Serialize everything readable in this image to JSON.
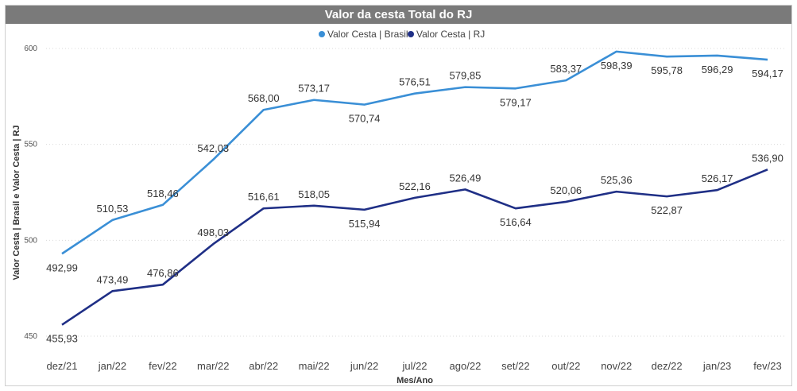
{
  "chart_data": {
    "type": "line",
    "title": "Valor da cesta Total do RJ",
    "xlabel": "Mes/Ano",
    "ylabel": "Valor Cesta | Brasil e Valor Cesta | RJ",
    "ylim": [
      450,
      600
    ],
    "yticks": [
      450,
      500,
      550,
      600
    ],
    "ytick_labels": [
      "450",
      "500",
      "550",
      "600"
    ],
    "categories": [
      "dez/21",
      "jan/22",
      "fev/22",
      "mar/22",
      "abr/22",
      "mai/22",
      "jun/22",
      "jul/22",
      "ago/22",
      "set/22",
      "out/22",
      "nov/22",
      "dez/22",
      "jan/23",
      "fev/23"
    ],
    "series": [
      {
        "name": "Valor Cesta | Brasil",
        "color": "#3a8fd6",
        "values": [
          492.99,
          510.53,
          518.46,
          542.03,
          568.0,
          573.17,
          570.74,
          576.51,
          579.85,
          579.17,
          583.37,
          598.39,
          595.78,
          596.29,
          594.17
        ],
        "labels": [
          "492,99",
          "510,53",
          "518,46",
          "542,03",
          "568,00",
          "573,17",
          "570,74",
          "576,51",
          "579,85",
          "579,17",
          "583,37",
          "598,39",
          "595,78",
          "596,29",
          "594,17"
        ]
      },
      {
        "name": "Valor Cesta | RJ",
        "color": "#1f2f86",
        "values": [
          455.93,
          473.49,
          476.86,
          498.03,
          516.61,
          518.05,
          515.94,
          522.16,
          526.49,
          516.64,
          520.06,
          525.36,
          522.87,
          526.17,
          536.9
        ],
        "labels": [
          "455,93",
          "473,49",
          "476,86",
          "498,03",
          "516,61",
          "518,05",
          "515,94",
          "522,16",
          "526,49",
          "516,64",
          "520,06",
          "525,36",
          "522,87",
          "526,17",
          "536,90"
        ]
      }
    ]
  }
}
